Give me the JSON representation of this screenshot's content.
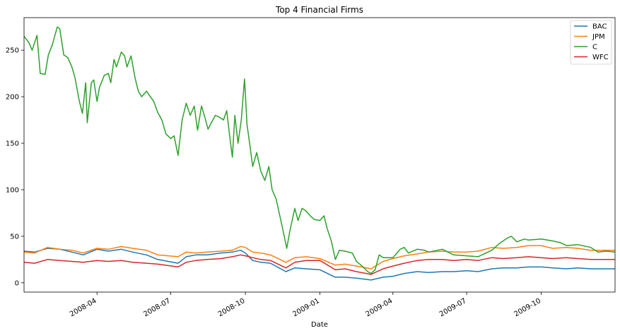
{
  "chart_data": {
    "type": "line",
    "title": "Top 4 Financial Firms",
    "xlabel": "Date",
    "ylabel": "",
    "x_range": [
      "2008-01-02",
      "2009-12-31"
    ],
    "ylim": [
      -10,
      285
    ],
    "y_ticks": [
      0,
      50,
      100,
      150,
      200,
      250
    ],
    "x_ticks": [
      {
        "date": "2008-04-01",
        "label": "2008-04"
      },
      {
        "date": "2008-07-01",
        "label": "2008-07"
      },
      {
        "date": "2008-10-01",
        "label": "2008-10"
      },
      {
        "date": "2009-01-01",
        "label": "2009-01"
      },
      {
        "date": "2009-04-01",
        "label": "2009-04"
      },
      {
        "date": "2009-07-01",
        "label": "2009-07"
      },
      {
        "date": "2009-10-01",
        "label": "2009-10"
      }
    ],
    "grid": false,
    "legend_position": "top-right",
    "series": [
      {
        "name": "BAC",
        "color": "#1f77b4",
        "points": [
          [
            "2008-01-02",
            34
          ],
          [
            "2008-01-15",
            33
          ],
          [
            "2008-01-31",
            37
          ],
          [
            "2008-02-15",
            36
          ],
          [
            "2008-03-01",
            33
          ],
          [
            "2008-03-15",
            30
          ],
          [
            "2008-04-01",
            36
          ],
          [
            "2008-04-15",
            34
          ],
          [
            "2008-05-01",
            36
          ],
          [
            "2008-05-15",
            33
          ],
          [
            "2008-06-01",
            30
          ],
          [
            "2008-06-15",
            25
          ],
          [
            "2008-07-10",
            21
          ],
          [
            "2008-07-20",
            28
          ],
          [
            "2008-08-01",
            30
          ],
          [
            "2008-08-15",
            30
          ],
          [
            "2008-09-01",
            32
          ],
          [
            "2008-09-15",
            33
          ],
          [
            "2008-09-25",
            35
          ],
          [
            "2008-10-01",
            32
          ],
          [
            "2008-10-10",
            24
          ],
          [
            "2008-10-20",
            22
          ],
          [
            "2008-11-01",
            21
          ],
          [
            "2008-11-20",
            12
          ],
          [
            "2008-12-01",
            16
          ],
          [
            "2008-12-15",
            15
          ],
          [
            "2009-01-01",
            14
          ],
          [
            "2009-01-20",
            6
          ],
          [
            "2009-02-01",
            6
          ],
          [
            "2009-02-15",
            5
          ],
          [
            "2009-03-05",
            3
          ],
          [
            "2009-03-20",
            6
          ],
          [
            "2009-04-01",
            7
          ],
          [
            "2009-04-15",
            10
          ],
          [
            "2009-05-01",
            12
          ],
          [
            "2009-05-15",
            11
          ],
          [
            "2009-06-01",
            12
          ],
          [
            "2009-06-15",
            12
          ],
          [
            "2009-07-01",
            13
          ],
          [
            "2009-07-15",
            12
          ],
          [
            "2009-08-01",
            15
          ],
          [
            "2009-08-15",
            16
          ],
          [
            "2009-09-01",
            16
          ],
          [
            "2009-09-15",
            17
          ],
          [
            "2009-10-01",
            17
          ],
          [
            "2009-10-15",
            16
          ],
          [
            "2009-11-01",
            15
          ],
          [
            "2009-11-15",
            16
          ],
          [
            "2009-12-01",
            15
          ],
          [
            "2009-12-31",
            15
          ]
        ]
      },
      {
        "name": "JPM",
        "color": "#ff7f0e",
        "points": [
          [
            "2008-01-02",
            33
          ],
          [
            "2008-01-15",
            32
          ],
          [
            "2008-01-31",
            38
          ],
          [
            "2008-02-15",
            36
          ],
          [
            "2008-03-01",
            35
          ],
          [
            "2008-03-15",
            32
          ],
          [
            "2008-04-01",
            37
          ],
          [
            "2008-04-15",
            36
          ],
          [
            "2008-05-01",
            39
          ],
          [
            "2008-05-15",
            37
          ],
          [
            "2008-06-01",
            35
          ],
          [
            "2008-06-15",
            30
          ],
          [
            "2008-07-10",
            28
          ],
          [
            "2008-07-20",
            33
          ],
          [
            "2008-08-01",
            32
          ],
          [
            "2008-08-15",
            33
          ],
          [
            "2008-09-01",
            34
          ],
          [
            "2008-09-15",
            35
          ],
          [
            "2008-09-25",
            39
          ],
          [
            "2008-10-01",
            38
          ],
          [
            "2008-10-10",
            33
          ],
          [
            "2008-10-20",
            32
          ],
          [
            "2008-11-01",
            30
          ],
          [
            "2008-11-20",
            22
          ],
          [
            "2008-12-01",
            27
          ],
          [
            "2008-12-15",
            28
          ],
          [
            "2009-01-01",
            26
          ],
          [
            "2009-01-20",
            19
          ],
          [
            "2009-02-01",
            20
          ],
          [
            "2009-02-15",
            18
          ],
          [
            "2009-03-05",
            15
          ],
          [
            "2009-03-20",
            23
          ],
          [
            "2009-04-01",
            26
          ],
          [
            "2009-04-15",
            29
          ],
          [
            "2009-05-01",
            31
          ],
          [
            "2009-05-15",
            33
          ],
          [
            "2009-06-01",
            34
          ],
          [
            "2009-06-15",
            33
          ],
          [
            "2009-07-01",
            33
          ],
          [
            "2009-07-15",
            34
          ],
          [
            "2009-08-01",
            38
          ],
          [
            "2009-08-15",
            37
          ],
          [
            "2009-09-01",
            38
          ],
          [
            "2009-09-15",
            40
          ],
          [
            "2009-10-01",
            40
          ],
          [
            "2009-10-15",
            37
          ],
          [
            "2009-11-01",
            38
          ],
          [
            "2009-11-15",
            37
          ],
          [
            "2009-12-01",
            35
          ],
          [
            "2009-12-31",
            35
          ]
        ]
      },
      {
        "name": "C",
        "color": "#2ca02c",
        "points": [
          [
            "2008-01-02",
            265
          ],
          [
            "2008-01-08",
            258
          ],
          [
            "2008-01-12",
            250
          ],
          [
            "2008-01-18",
            266
          ],
          [
            "2008-01-22",
            225
          ],
          [
            "2008-01-28",
            224
          ],
          [
            "2008-02-01",
            245
          ],
          [
            "2008-02-06",
            256
          ],
          [
            "2008-02-12",
            275
          ],
          [
            "2008-02-15",
            273
          ],
          [
            "2008-02-20",
            245
          ],
          [
            "2008-02-25",
            242
          ],
          [
            "2008-03-01",
            232
          ],
          [
            "2008-03-05",
            220
          ],
          [
            "2008-03-10",
            196
          ],
          [
            "2008-03-14",
            182
          ],
          [
            "2008-03-18",
            215
          ],
          [
            "2008-03-20",
            172
          ],
          [
            "2008-03-25",
            215
          ],
          [
            "2008-03-28",
            218
          ],
          [
            "2008-04-01",
            195
          ],
          [
            "2008-04-04",
            210
          ],
          [
            "2008-04-10",
            223
          ],
          [
            "2008-04-15",
            225
          ],
          [
            "2008-04-18",
            215
          ],
          [
            "2008-04-22",
            240
          ],
          [
            "2008-04-25",
            232
          ],
          [
            "2008-05-01",
            248
          ],
          [
            "2008-05-05",
            244
          ],
          [
            "2008-05-08",
            232
          ],
          [
            "2008-05-13",
            244
          ],
          [
            "2008-05-18",
            220
          ],
          [
            "2008-05-22",
            206
          ],
          [
            "2008-05-26",
            200
          ],
          [
            "2008-06-01",
            206
          ],
          [
            "2008-06-05",
            201
          ],
          [
            "2008-06-10",
            195
          ],
          [
            "2008-06-15",
            183
          ],
          [
            "2008-06-20",
            175
          ],
          [
            "2008-06-25",
            160
          ],
          [
            "2008-07-01",
            155
          ],
          [
            "2008-07-05",
            158
          ],
          [
            "2008-07-10",
            137
          ],
          [
            "2008-07-15",
            175
          ],
          [
            "2008-07-20",
            193
          ],
          [
            "2008-07-25",
            180
          ],
          [
            "2008-07-30",
            190
          ],
          [
            "2008-08-03",
            164
          ],
          [
            "2008-08-08",
            190
          ],
          [
            "2008-08-12",
            178
          ],
          [
            "2008-08-16",
            165
          ],
          [
            "2008-08-20",
            172
          ],
          [
            "2008-08-25",
            180
          ],
          [
            "2008-08-30",
            178
          ],
          [
            "2008-09-04",
            175
          ],
          [
            "2008-09-08",
            185
          ],
          [
            "2008-09-12",
            155
          ],
          [
            "2008-09-15",
            135
          ],
          [
            "2008-09-18",
            180
          ],
          [
            "2008-09-22",
            150
          ],
          [
            "2008-09-26",
            175
          ],
          [
            "2008-09-30",
            219
          ],
          [
            "2008-10-03",
            170
          ],
          [
            "2008-10-07",
            145
          ],
          [
            "2008-10-10",
            125
          ],
          [
            "2008-10-15",
            140
          ],
          [
            "2008-10-20",
            120
          ],
          [
            "2008-10-25",
            110
          ],
          [
            "2008-10-30",
            125
          ],
          [
            "2008-11-03",
            100
          ],
          [
            "2008-11-08",
            90
          ],
          [
            "2008-11-13",
            70
          ],
          [
            "2008-11-18",
            50
          ],
          [
            "2008-11-21",
            37
          ],
          [
            "2008-11-25",
            56
          ],
          [
            "2008-12-01",
            80
          ],
          [
            "2008-12-05",
            67
          ],
          [
            "2008-12-10",
            80
          ],
          [
            "2008-12-15",
            77
          ],
          [
            "2008-12-20",
            72
          ],
          [
            "2008-12-25",
            68
          ],
          [
            "2009-01-01",
            67
          ],
          [
            "2009-01-06",
            72
          ],
          [
            "2009-01-10",
            58
          ],
          [
            "2009-01-15",
            45
          ],
          [
            "2009-01-20",
            25
          ],
          [
            "2009-01-25",
            35
          ],
          [
            "2009-02-01",
            34
          ],
          [
            "2009-02-10",
            32
          ],
          [
            "2009-02-15",
            23
          ],
          [
            "2009-02-22",
            18
          ],
          [
            "2009-03-01",
            12
          ],
          [
            "2009-03-05",
            10
          ],
          [
            "2009-03-10",
            14
          ],
          [
            "2009-03-15",
            30
          ],
          [
            "2009-03-20",
            27
          ],
          [
            "2009-04-01",
            27
          ],
          [
            "2009-04-10",
            36
          ],
          [
            "2009-04-15",
            38
          ],
          [
            "2009-04-20",
            32
          ],
          [
            "2009-05-01",
            36
          ],
          [
            "2009-05-10",
            35
          ],
          [
            "2009-05-15",
            33
          ],
          [
            "2009-06-01",
            36
          ],
          [
            "2009-06-15",
            30
          ],
          [
            "2009-07-01",
            29
          ],
          [
            "2009-07-15",
            28
          ],
          [
            "2009-08-01",
            35
          ],
          [
            "2009-08-10",
            42
          ],
          [
            "2009-08-20",
            48
          ],
          [
            "2009-08-25",
            50
          ],
          [
            "2009-09-01",
            44
          ],
          [
            "2009-09-10",
            47
          ],
          [
            "2009-09-15",
            46
          ],
          [
            "2009-10-01",
            47
          ],
          [
            "2009-10-15",
            45
          ],
          [
            "2009-10-25",
            43
          ],
          [
            "2009-11-01",
            40
          ],
          [
            "2009-11-15",
            41
          ],
          [
            "2009-12-01",
            38
          ],
          [
            "2009-12-10",
            33
          ],
          [
            "2009-12-20",
            34
          ],
          [
            "2009-12-31",
            33
          ]
        ]
      },
      {
        "name": "WFC",
        "color": "#d62728",
        "points": [
          [
            "2008-01-02",
            22
          ],
          [
            "2008-01-15",
            21
          ],
          [
            "2008-01-31",
            25
          ],
          [
            "2008-02-15",
            24
          ],
          [
            "2008-03-01",
            23
          ],
          [
            "2008-03-15",
            22
          ],
          [
            "2008-04-01",
            24
          ],
          [
            "2008-04-15",
            23
          ],
          [
            "2008-05-01",
            24
          ],
          [
            "2008-05-15",
            22
          ],
          [
            "2008-06-01",
            21
          ],
          [
            "2008-06-15",
            20
          ],
          [
            "2008-07-10",
            17
          ],
          [
            "2008-07-20",
            22
          ],
          [
            "2008-08-01",
            24
          ],
          [
            "2008-08-15",
            25
          ],
          [
            "2008-09-01",
            26
          ],
          [
            "2008-09-15",
            28
          ],
          [
            "2008-09-25",
            30
          ],
          [
            "2008-10-01",
            29
          ],
          [
            "2008-10-10",
            27
          ],
          [
            "2008-10-20",
            25
          ],
          [
            "2008-11-01",
            24
          ],
          [
            "2008-11-20",
            16
          ],
          [
            "2008-12-01",
            22
          ],
          [
            "2008-12-15",
            24
          ],
          [
            "2009-01-01",
            24
          ],
          [
            "2009-01-20",
            14
          ],
          [
            "2009-02-01",
            15
          ],
          [
            "2009-02-15",
            12
          ],
          [
            "2009-03-05",
            9
          ],
          [
            "2009-03-20",
            15
          ],
          [
            "2009-04-01",
            18
          ],
          [
            "2009-04-15",
            21
          ],
          [
            "2009-05-01",
            24
          ],
          [
            "2009-05-15",
            25
          ],
          [
            "2009-06-01",
            25
          ],
          [
            "2009-06-15",
            24
          ],
          [
            "2009-07-01",
            25
          ],
          [
            "2009-07-15",
            24
          ],
          [
            "2009-08-01",
            27
          ],
          [
            "2009-08-15",
            26
          ],
          [
            "2009-09-01",
            27
          ],
          [
            "2009-09-15",
            28
          ],
          [
            "2009-10-01",
            27
          ],
          [
            "2009-10-15",
            26
          ],
          [
            "2009-11-01",
            27
          ],
          [
            "2009-11-15",
            26
          ],
          [
            "2009-12-01",
            25
          ],
          [
            "2009-12-31",
            25
          ]
        ]
      }
    ]
  }
}
